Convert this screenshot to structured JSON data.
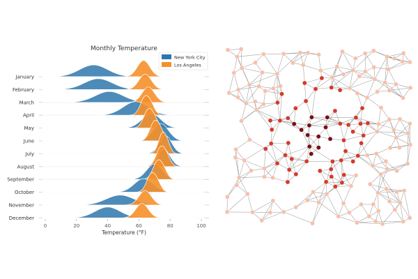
{
  "colors": {
    "nyc": "#2e77ad",
    "la": "#f5902b",
    "grid": "#cccccc",
    "text": "#333333",
    "edge": "#555555",
    "node_dark": "#7a0f14",
    "node_mid": "#d43a2c",
    "node_light": "#f6c1ab"
  },
  "chart_data": [
    {
      "type": "ridgeline",
      "title": "Monthly Temperature",
      "xlabel": "Temperature (°F)",
      "ylabel": "",
      "xlim": [
        -5,
        105
      ],
      "xticks": [
        0,
        20,
        40,
        60,
        80,
        100
      ],
      "grid": false,
      "legend_position": "top-right",
      "categories": [
        "January",
        "February",
        "March",
        "April",
        "May",
        "June",
        "July",
        "August",
        "September",
        "October",
        "November",
        "December"
      ],
      "series": [
        {
          "name": "New York City",
          "peaks": [
            31,
            34,
            41,
            58,
            68,
            74,
            77,
            76,
            70,
            63,
            48,
            40
          ],
          "spreads": [
            9,
            9,
            9,
            8,
            6,
            5,
            4,
            4,
            5,
            6,
            9,
            8
          ],
          "heights": [
            0.65,
            0.6,
            0.6,
            0.75,
            0.8,
            0.95,
            1.0,
            0.95,
            0.85,
            0.75,
            0.55,
            0.6
          ]
        },
        {
          "name": "Los Angeles",
          "peaks": [
            63,
            64,
            66,
            64,
            66,
            70,
            75,
            74,
            72,
            68,
            64,
            62
          ],
          "spreads": [
            4,
            4,
            4,
            3,
            3,
            3,
            2.5,
            3,
            3,
            3,
            4,
            4
          ],
          "heights": [
            0.9,
            0.85,
            0.85,
            1.0,
            1.0,
            1.05,
            1.1,
            1.05,
            1.0,
            1.0,
            0.8,
            0.8
          ]
        }
      ]
    },
    {
      "type": "network",
      "title": "",
      "node_count": 180,
      "color_encoding": "darker red toward the graph center"
    }
  ]
}
